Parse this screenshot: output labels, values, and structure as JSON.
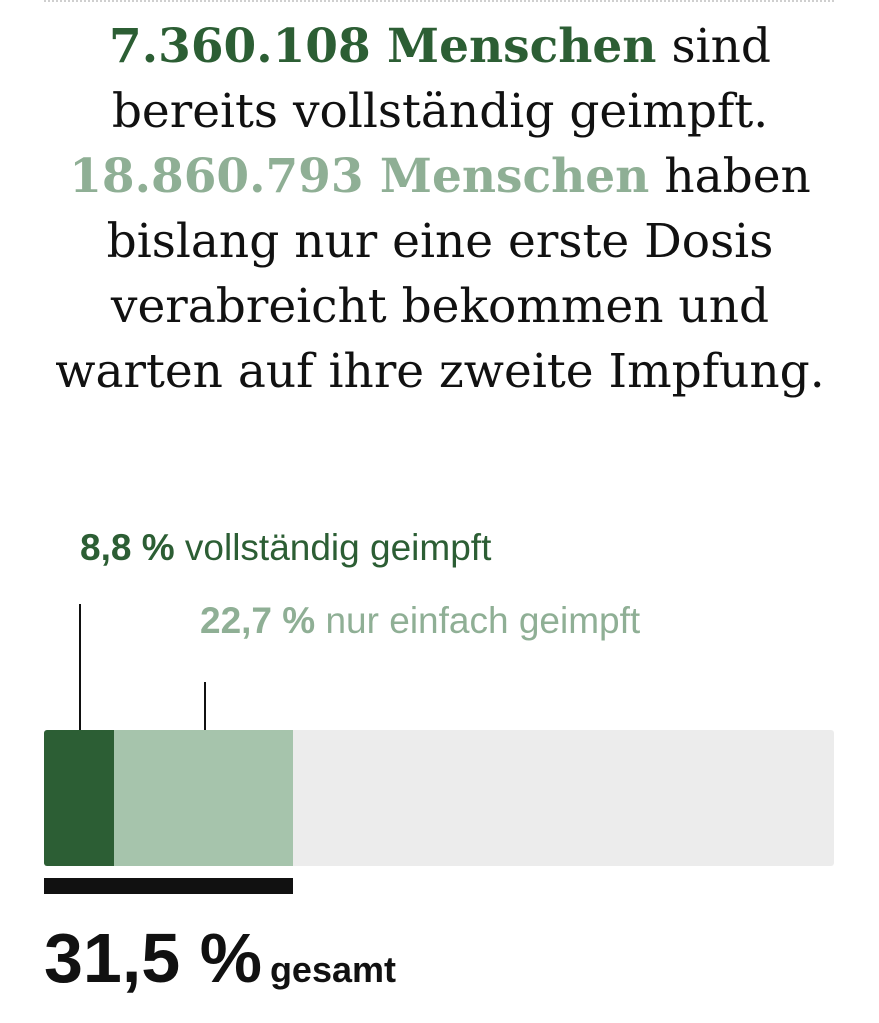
{
  "headline": {
    "full_count": "7.360.108 Menschen",
    "full_rest": "sind bereits vollständig geimpft.",
    "first_count": "18.860.793 Menschen",
    "first_rest": "haben bislang nur eine erste Dosis verabreicht bekommen und warten auf ihre zweite Impfung."
  },
  "colors": {
    "full": "#2c5e34",
    "first": "#a6c4ac",
    "first_text": "#8faf95",
    "track": "#ececec",
    "total": "#111111"
  },
  "chart_data": {
    "type": "bar",
    "orientation": "horizontal-stacked",
    "scale_max": 100,
    "series": [
      {
        "name": "vollständig geimpft",
        "value": 8.8,
        "value_label": "8,8 %"
      },
      {
        "name": "nur einfach geimpft",
        "value": 22.7,
        "value_label": "22,7 %"
      }
    ],
    "total": {
      "value": 31.5,
      "value_label": "31,5 %",
      "label": "gesamt"
    }
  }
}
